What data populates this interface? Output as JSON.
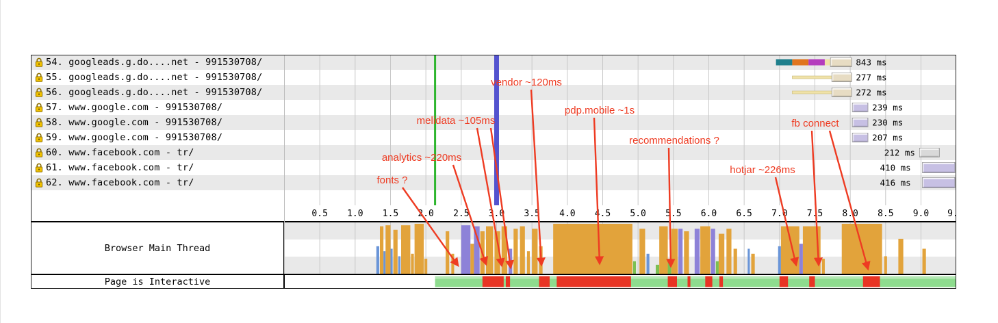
{
  "colors": {
    "grid": "#c8c8c8",
    "start_render": "#2db52d",
    "dom_complete": "#5353cf",
    "annotation": "#ee3b22",
    "dns": "#1f7f8c",
    "connect": "#e0751f",
    "ssl": "#b43dbd",
    "req": "#f0e2a8",
    "beige": "#e7dcc3",
    "lavender": "#c7c0e4",
    "grayblk": "#d9d9d9",
    "s": "#e2a33b",
    "l": "#8d82d8",
    "p": "#6a95d8",
    "g": "#7cc052",
    "interactive_green": "#8edc8e",
    "interactive_red": "#e83424"
  },
  "chart_data": {
    "type": "waterfall",
    "title": "",
    "time_axis": {
      "unit": "seconds",
      "xlim": [
        0,
        9.5
      ],
      "ticks": [
        {
          "t": 0.5,
          "label": "0.5"
        },
        {
          "t": 1.0,
          "label": "1.0"
        },
        {
          "t": 1.5,
          "label": "1.5"
        },
        {
          "t": 2.0,
          "label": "2.0"
        },
        {
          "t": 2.5,
          "label": "2.5"
        },
        {
          "t": 3.0,
          "label": "3.0"
        },
        {
          "t": 3.5,
          "label": "3.5"
        },
        {
          "t": 4.0,
          "label": "4.0"
        },
        {
          "t": 4.5,
          "label": "4.5"
        },
        {
          "t": 5.0,
          "label": "5.0"
        },
        {
          "t": 5.5,
          "label": "5.5"
        },
        {
          "t": 6.0,
          "label": "6.0"
        },
        {
          "t": 6.5,
          "label": "6.5"
        },
        {
          "t": 7.0,
          "label": "7.0"
        },
        {
          "t": 7.5,
          "label": "7.5"
        },
        {
          "t": 8.0,
          "label": "8.0"
        },
        {
          "t": 8.5,
          "label": "8.5"
        },
        {
          "t": 9.0,
          "label": "9.0"
        },
        {
          "t": 9.45,
          "label": "9."
        }
      ]
    },
    "events": {
      "start_render_s": 2.13,
      "dom_complete_s": 3.0
    },
    "requests": [
      {
        "num": "54.",
        "url": "googleads.g.do....net - 991530708/",
        "secure": true,
        "time": "843 ms",
        "bar": {
          "segments": [
            [
              6.95,
              7.18,
              "dns"
            ],
            [
              7.18,
              7.41,
              "connect"
            ],
            [
              7.41,
              7.64,
              "ssl"
            ],
            [
              7.64,
              7.72,
              "req"
            ]
          ],
          "block": [
            7.72,
            8.02,
            "beige",
            13
          ],
          "label_t": 8.08
        }
      },
      {
        "num": "55.",
        "url": "googleads.g.do....net - 991530708/",
        "secure": true,
        "time": "277 ms",
        "bar": {
          "thin": [
            7.18,
            7.74
          ],
          "block": [
            7.74,
            8.02,
            "beige",
            13
          ],
          "label_t": 8.08
        }
      },
      {
        "num": "56.",
        "url": "googleads.g.do....net - 991530708/",
        "secure": true,
        "time": "272 ms",
        "bar": {
          "thin": [
            7.18,
            7.74
          ],
          "block": [
            7.74,
            8.02,
            "beige",
            13
          ],
          "label_t": 8.08
        }
      },
      {
        "num": "57.",
        "url": "www.google.com - 991530708/",
        "secure": true,
        "time": "239 ms",
        "bar": {
          "block": [
            8.03,
            8.25,
            "lavender",
            13
          ],
          "label_t": 8.31
        }
      },
      {
        "num": "58.",
        "url": "www.google.com - 991530708/",
        "secure": true,
        "time": "230 ms",
        "bar": {
          "block": [
            8.03,
            8.25,
            "lavender",
            13
          ],
          "label_t": 8.31
        }
      },
      {
        "num": "59.",
        "url": "www.google.com - 991530708/",
        "secure": true,
        "time": "207 ms",
        "bar": {
          "block": [
            8.03,
            8.25,
            "lavender",
            13
          ],
          "label_t": 8.31
        }
      },
      {
        "num": "60.",
        "url": "www.facebook.com - tr/",
        "secure": true,
        "time": "212 ms",
        "bar": {
          "block": [
            8.98,
            9.26,
            "grayblk",
            13
          ],
          "label_t": 8.48
        }
      },
      {
        "num": "61.",
        "url": "www.facebook.com - tr/",
        "secure": true,
        "time": "410 ms",
        "bar": {
          "block": [
            9.02,
            9.48,
            "lavender",
            15
          ],
          "label_t": 8.42
        }
      },
      {
        "num": "62.",
        "url": "www.facebook.com - tr/",
        "secure": true,
        "time": "416 ms",
        "bar": {
          "block": [
            9.02,
            9.48,
            "lavender",
            15
          ],
          "label_t": 8.42
        }
      }
    ],
    "main_thread": {
      "label": "Browser Main Thread",
      "spans": [
        [
          1.3,
          1.34,
          0.55,
          "p"
        ],
        [
          1.35,
          1.4,
          0.95,
          "s"
        ],
        [
          1.4,
          1.43,
          0.45,
          "p"
        ],
        [
          1.43,
          1.5,
          0.97,
          "s"
        ],
        [
          1.5,
          1.53,
          0.5,
          "p"
        ],
        [
          1.54,
          1.6,
          0.88,
          "s"
        ],
        [
          1.61,
          1.64,
          0.35,
          "p"
        ],
        [
          1.65,
          1.78,
          0.97,
          "s"
        ],
        [
          1.79,
          1.83,
          0.4,
          "s"
        ],
        [
          1.84,
          1.97,
          1.0,
          "s"
        ],
        [
          1.98,
          2.02,
          0.3,
          "s"
        ],
        [
          2.28,
          2.33,
          0.85,
          "s"
        ],
        [
          2.36,
          2.4,
          0.4,
          "s"
        ],
        [
          2.5,
          2.63,
          0.97,
          "l"
        ],
        [
          2.63,
          2.68,
          0.6,
          "s"
        ],
        [
          2.68,
          2.76,
          0.95,
          "l"
        ],
        [
          2.77,
          2.83,
          0.85,
          "s"
        ],
        [
          2.85,
          2.95,
          0.95,
          "s"
        ],
        [
          2.97,
          3.05,
          0.85,
          "s"
        ],
        [
          3.07,
          3.15,
          0.95,
          "s"
        ],
        [
          3.17,
          3.22,
          0.5,
          "l"
        ],
        [
          3.24,
          3.3,
          0.9,
          "s"
        ],
        [
          3.33,
          3.4,
          0.95,
          "s"
        ],
        [
          3.43,
          3.47,
          0.45,
          "s"
        ],
        [
          3.5,
          3.58,
          0.9,
          "s"
        ],
        [
          3.6,
          3.65,
          0.55,
          "s"
        ],
        [
          3.8,
          4.92,
          1.0,
          "s"
        ],
        [
          4.93,
          4.97,
          0.25,
          "g"
        ],
        [
          5.02,
          5.1,
          0.9,
          "s"
        ],
        [
          5.12,
          5.16,
          0.4,
          "p"
        ],
        [
          5.25,
          5.3,
          0.18,
          "g"
        ],
        [
          5.3,
          5.42,
          0.95,
          "s"
        ],
        [
          5.42,
          5.47,
          0.3,
          "g"
        ],
        [
          5.47,
          5.56,
          0.9,
          "s"
        ],
        [
          5.57,
          5.63,
          0.9,
          "l"
        ],
        [
          5.65,
          5.72,
          0.85,
          "s"
        ],
        [
          5.8,
          5.87,
          0.9,
          "l"
        ],
        [
          5.88,
          6.02,
          0.95,
          "s"
        ],
        [
          6.03,
          6.09,
          0.9,
          "l"
        ],
        [
          6.1,
          6.14,
          0.25,
          "g"
        ],
        [
          6.14,
          6.22,
          0.8,
          "s"
        ],
        [
          6.25,
          6.32,
          0.9,
          "s"
        ],
        [
          6.35,
          6.4,
          0.5,
          "s"
        ],
        [
          6.55,
          6.58,
          0.5,
          "p"
        ],
        [
          6.6,
          6.65,
          0.4,
          "s"
        ],
        [
          6.98,
          7.02,
          0.55,
          "p"
        ],
        [
          7.02,
          7.28,
          0.95,
          "s"
        ],
        [
          7.28,
          7.33,
          0.6,
          "l"
        ],
        [
          7.33,
          7.58,
          0.95,
          "s"
        ],
        [
          7.6,
          7.64,
          0.3,
          "s"
        ],
        [
          7.88,
          8.45,
          1.0,
          "s"
        ],
        [
          8.48,
          8.52,
          0.35,
          "s"
        ],
        [
          8.68,
          8.75,
          0.7,
          "s"
        ],
        [
          9.02,
          9.07,
          0.5,
          "s"
        ]
      ]
    },
    "interactive": {
      "label": "Page is Interactive",
      "start_s": 2.13,
      "end_s": 9.49,
      "red_segments": [
        [
          2.8,
          3.1
        ],
        [
          3.13,
          3.19
        ],
        [
          3.6,
          3.75
        ],
        [
          3.85,
          4.9
        ],
        [
          5.42,
          5.55
        ],
        [
          5.7,
          5.74
        ],
        [
          5.95,
          6.05
        ],
        [
          6.15,
          6.2
        ],
        [
          7.0,
          7.12
        ],
        [
          7.42,
          7.5
        ],
        [
          8.18,
          8.42
        ]
      ]
    },
    "annotations": [
      {
        "label": "fonts ?",
        "x": 573,
        "y": 268,
        "arrows": [
          [
            588,
            274,
            669,
            388
          ]
        ]
      },
      {
        "label": "analytics ~220ms",
        "x": 616,
        "y": 235,
        "arrows": [
          [
            662,
            241,
            710,
            386
          ]
        ]
      },
      {
        "label": "melidata ~105ms",
        "x": 666,
        "y": 181,
        "arrows": [
          [
            697,
            187,
            733,
            388
          ],
          [
            717,
            187,
            746,
            391
          ]
        ]
      },
      {
        "label": "vendor ~120ms",
        "x": 769,
        "y": 125,
        "arrows": [
          [
            776,
            131,
            791,
            387
          ]
        ]
      },
      {
        "label": "pdp.mobile ~1s",
        "x": 876,
        "y": 166,
        "arrows": [
          [
            868,
            172,
            876,
            385
          ]
        ]
      },
      {
        "label": "recommendations ?",
        "x": 985,
        "y": 210,
        "arrows": [
          [
            977,
            216,
            980,
            389
          ]
        ]
      },
      {
        "label": "hotjar ~226ms",
        "x": 1114,
        "y": 253,
        "arrows": [
          [
            1133,
            259,
            1163,
            387
          ]
        ]
      },
      {
        "label": "fb connect",
        "x": 1191,
        "y": 185,
        "arrows": [
          [
            1186,
            191,
            1196,
            387
          ],
          [
            1212,
            191,
            1268,
            393
          ]
        ]
      }
    ]
  }
}
